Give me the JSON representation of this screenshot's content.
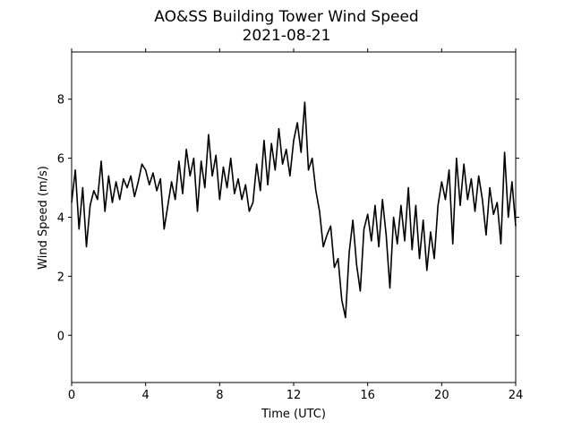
{
  "chart_data": {
    "type": "line",
    "title": "AO&SS Building Tower Wind Speed",
    "subtitle": "2021-08-21",
    "x_label": "Time (UTC)",
    "y_label": "Wind Speed (m/s)",
    "x": [
      0,
      0.2,
      0.4,
      0.6,
      0.8,
      1.0,
      1.2,
      1.4,
      1.6,
      1.8,
      2.0,
      2.2,
      2.4,
      2.6,
      2.8,
      3.0,
      3.2,
      3.4,
      3.6,
      3.8,
      4.0,
      4.2,
      4.4,
      4.6,
      4.8,
      5.0,
      5.2,
      5.4,
      5.6,
      5.8,
      6.0,
      6.2,
      6.4,
      6.6,
      6.8,
      7.0,
      7.2,
      7.4,
      7.6,
      7.8,
      8.0,
      8.2,
      8.4,
      8.6,
      8.8,
      9.0,
      9.2,
      9.4,
      9.6,
      9.8,
      10.0,
      10.2,
      10.4,
      10.6,
      10.8,
      11.0,
      11.2,
      11.4,
      11.6,
      11.8,
      12.0,
      12.2,
      12.4,
      12.6,
      12.8,
      13.0,
      13.2,
      13.4,
      13.6,
      13.8,
      14.0,
      14.2,
      14.4,
      14.6,
      14.8,
      15.0,
      15.2,
      15.4,
      15.6,
      15.8,
      16.0,
      16.2,
      16.4,
      16.6,
      16.8,
      17.0,
      17.2,
      17.4,
      17.6,
      17.8,
      18.0,
      18.2,
      18.4,
      18.6,
      18.8,
      19.0,
      19.2,
      19.4,
      19.6,
      19.8,
      20.0,
      20.2,
      20.4,
      20.6,
      20.8,
      21.0,
      21.2,
      21.4,
      21.6,
      21.8,
      22.0,
      22.2,
      22.4,
      22.6,
      22.8,
      23.0,
      23.2,
      23.4,
      23.6,
      23.8,
      24.0
    ],
    "series": [
      {
        "name": "Wind Speed",
        "color": "#000000",
        "values": [
          4.5,
          5.6,
          3.6,
          5.0,
          3.0,
          4.4,
          4.9,
          4.6,
          5.9,
          4.2,
          5.4,
          4.5,
          5.2,
          4.6,
          5.3,
          5.0,
          5.4,
          4.7,
          5.2,
          5.8,
          5.6,
          5.1,
          5.5,
          4.9,
          5.3,
          3.6,
          4.4,
          5.2,
          4.6,
          5.9,
          4.8,
          6.3,
          5.4,
          6.0,
          4.2,
          5.9,
          5.0,
          6.8,
          5.4,
          6.1,
          4.6,
          5.7,
          5.0,
          6.0,
          4.8,
          5.3,
          4.6,
          5.1,
          4.2,
          4.5,
          5.8,
          4.9,
          6.6,
          5.1,
          6.5,
          5.6,
          7.0,
          5.8,
          6.3,
          5.4,
          6.6,
          7.2,
          6.2,
          7.9,
          5.6,
          6.0,
          4.9,
          4.2,
          3.0,
          3.4,
          3.7,
          2.3,
          2.6,
          1.2,
          0.6,
          2.8,
          3.9,
          2.4,
          1.5,
          3.6,
          4.1,
          3.2,
          4.4,
          3.0,
          4.6,
          3.4,
          1.6,
          4.0,
          3.1,
          4.4,
          3.2,
          5.0,
          2.9,
          4.4,
          2.6,
          3.9,
          2.2,
          3.5,
          2.6,
          4.4,
          5.2,
          4.6,
          5.6,
          3.1,
          6.0,
          4.4,
          5.8,
          4.6,
          5.3,
          4.2,
          5.4,
          4.6,
          3.4,
          5.0,
          4.1,
          4.5,
          3.1,
          6.2,
          4.0,
          5.2,
          3.7
        ]
      }
    ],
    "xlim": [
      0,
      24
    ],
    "xticks": [
      0,
      4,
      8,
      12,
      16,
      20,
      24
    ],
    "ylim": [
      -1.6,
      9.6
    ],
    "yticks": [
      0,
      2,
      4,
      6,
      8
    ],
    "grid": false
  }
}
